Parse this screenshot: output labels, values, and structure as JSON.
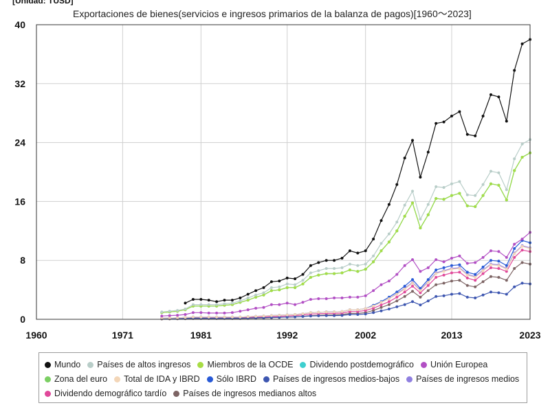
{
  "unit_label": "[Unidad: TUSD]",
  "chart_data": {
    "type": "line",
    "title": "Exportaciones de bienes(servicios e ingresos primarios de la balanza de pagos)[1960～2023]",
    "xlabel": "",
    "ylabel": "",
    "xlim": [
      1960,
      2023
    ],
    "ylim": [
      0,
      40
    ],
    "x_ticks": [
      1960,
      1971,
      1981,
      1992,
      2002,
      2013,
      2023
    ],
    "y_ticks": [
      0,
      8,
      16,
      24,
      32,
      40
    ],
    "grid": true,
    "legend_position": "bottom",
    "x": [
      1976,
      1977,
      1978,
      1979,
      1980,
      1981,
      1982,
      1983,
      1984,
      1985,
      1986,
      1987,
      1988,
      1989,
      1990,
      1991,
      1992,
      1993,
      1994,
      1995,
      1996,
      1997,
      1998,
      1999,
      2000,
      2001,
      2002,
      2003,
      2004,
      2005,
      2006,
      2007,
      2008,
      2009,
      2010,
      2011,
      2012,
      2013,
      2014,
      2015,
      2016,
      2017,
      2018,
      2019,
      2020,
      2021,
      2022,
      2023
    ],
    "series": [
      {
        "name": "Mundo",
        "color": "#111111",
        "values": [
          null,
          null,
          null,
          2.2,
          2.7,
          2.7,
          2.6,
          2.4,
          2.6,
          2.6,
          2.9,
          3.4,
          3.9,
          4.3,
          5.1,
          5.2,
          5.6,
          5.5,
          6.1,
          7.3,
          7.7,
          8.0,
          8.0,
          8.3,
          9.3,
          9.0,
          9.3,
          10.9,
          13.4,
          15.6,
          18.3,
          21.9,
          24.3,
          19.3,
          22.7,
          26.6,
          26.8,
          27.6,
          28.2,
          25.1,
          24.9,
          27.6,
          30.5,
          30.2,
          26.9,
          33.8,
          37.4,
          38.0
        ]
      },
      {
        "name": "Países de altos ingresos",
        "color": "#b8cdc8",
        "values": [
          1.0,
          1.1,
          1.2,
          1.4,
          2.0,
          2.0,
          2.0,
          2.0,
          2.1,
          2.2,
          2.5,
          2.9,
          3.3,
          3.6,
          4.3,
          4.4,
          4.8,
          4.7,
          5.3,
          6.3,
          6.6,
          6.9,
          6.9,
          7.0,
          7.5,
          7.3,
          7.5,
          8.6,
          10.3,
          11.6,
          13.2,
          15.5,
          17.4,
          13.6,
          15.6,
          18.0,
          17.9,
          18.4,
          18.7,
          16.9,
          16.8,
          18.3,
          20.1,
          19.9,
          17.6,
          21.8,
          23.8,
          24.4
        ]
      },
      {
        "name": "Miembros de la OCDE",
        "color": "#a7dc44",
        "values": [
          0.9,
          1.0,
          1.1,
          1.3,
          1.8,
          1.8,
          1.8,
          1.8,
          1.9,
          2.0,
          2.3,
          2.6,
          3.0,
          3.3,
          3.9,
          4.0,
          4.3,
          4.3,
          4.8,
          5.7,
          6.0,
          6.2,
          6.2,
          6.3,
          6.7,
          6.5,
          6.8,
          7.8,
          9.3,
          10.5,
          12.0,
          14.0,
          15.8,
          12.4,
          14.2,
          16.4,
          16.3,
          16.8,
          17.1,
          15.4,
          15.3,
          16.8,
          18.4,
          18.2,
          16.2,
          20.2,
          22.0,
          22.6
        ]
      },
      {
        "name": "Dividendo postdemográfico",
        "color": "#3ecfcf",
        "values": [
          0.9,
          1.0,
          1.1,
          1.3,
          1.8,
          1.8,
          1.8,
          1.8,
          1.9,
          2.0,
          2.3,
          2.6,
          3.0,
          3.3,
          3.9,
          4.0,
          4.3,
          4.3,
          4.8,
          5.7,
          6.0,
          6.2,
          6.2,
          6.3,
          6.7,
          6.5,
          6.8,
          7.8,
          9.3,
          10.5,
          12.0,
          14.0,
          15.8,
          12.4,
          14.2,
          16.4,
          16.3,
          16.8,
          17.1,
          15.4,
          15.3,
          16.8,
          18.4,
          18.2,
          16.2,
          20.2,
          22.0,
          22.6
        ]
      },
      {
        "name": "Unión Europea",
        "color": "#b24fc4",
        "values": [
          0.45,
          0.5,
          0.55,
          0.65,
          0.9,
          0.9,
          0.85,
          0.85,
          0.85,
          0.9,
          1.1,
          1.3,
          1.5,
          1.6,
          2.0,
          2.0,
          2.2,
          2.0,
          2.3,
          2.7,
          2.8,
          2.8,
          2.9,
          2.9,
          3.0,
          3.0,
          3.2,
          3.9,
          4.7,
          5.2,
          6.1,
          7.3,
          8.1,
          6.5,
          7.0,
          8.1,
          7.8,
          8.3,
          8.6,
          7.6,
          7.7,
          8.4,
          9.3,
          9.2,
          8.4,
          10.2,
          10.9,
          11.8
        ]
      },
      {
        "name": "Zona del euro",
        "color": "#7bcf63",
        "values": [
          0.9,
          1.0,
          1.1,
          1.3,
          1.8,
          1.8,
          1.8,
          1.8,
          1.9,
          2.0,
          2.3,
          2.6,
          3.0,
          3.3,
          3.9,
          4.0,
          4.3,
          4.3,
          4.8,
          5.7,
          6.0,
          6.2,
          6.2,
          6.3,
          6.7,
          6.5,
          6.8,
          7.8,
          9.3,
          10.5,
          12.0,
          14.0,
          15.8,
          12.4,
          14.2,
          16.4,
          16.3,
          16.8,
          17.1,
          15.4,
          15.3,
          16.8,
          18.4,
          18.2,
          16.2,
          20.2,
          22.0,
          22.6
        ]
      },
      {
        "name": "Total de IDA y IBRD",
        "color": "#f3d6b8",
        "values": [
          0.15,
          0.17,
          0.2,
          0.24,
          0.3,
          0.3,
          0.3,
          0.3,
          0.3,
          0.3,
          0.3,
          0.35,
          0.4,
          0.45,
          0.5,
          0.55,
          0.6,
          0.65,
          0.75,
          0.9,
          0.95,
          1.0,
          1.0,
          1.05,
          1.3,
          1.3,
          1.45,
          1.8,
          2.3,
          2.8,
          3.4,
          4.1,
          4.9,
          3.9,
          5.0,
          6.2,
          6.5,
          6.8,
          6.9,
          6.0,
          5.7,
          6.6,
          7.4,
          7.3,
          6.8,
          8.9,
          9.9,
          9.6
        ]
      },
      {
        "name": "Sólo IBRD",
        "color": "#2759d6",
        "values": [
          0.15,
          0.17,
          0.2,
          0.24,
          0.3,
          0.3,
          0.3,
          0.3,
          0.3,
          0.3,
          0.3,
          0.35,
          0.4,
          0.45,
          0.5,
          0.55,
          0.6,
          0.65,
          0.75,
          0.9,
          0.95,
          1.0,
          1.0,
          1.05,
          1.3,
          1.3,
          1.45,
          1.9,
          2.4,
          3.0,
          3.7,
          4.5,
          5.4,
          4.2,
          5.4,
          6.7,
          7.0,
          7.3,
          7.4,
          6.4,
          6.1,
          7.1,
          8.0,
          7.9,
          7.3,
          9.6,
          10.7,
          10.4
        ]
      },
      {
        "name": "Países de ingresos medios-bajos",
        "color": "#3d56b0",
        "values": [
          0.1,
          0.1,
          0.1,
          0.12,
          0.15,
          0.15,
          0.14,
          0.14,
          0.14,
          0.15,
          0.15,
          0.17,
          0.2,
          0.22,
          0.25,
          0.27,
          0.3,
          0.33,
          0.38,
          0.45,
          0.48,
          0.5,
          0.5,
          0.52,
          0.65,
          0.65,
          0.72,
          0.9,
          1.15,
          1.4,
          1.7,
          2.0,
          2.4,
          1.95,
          2.5,
          3.1,
          3.2,
          3.4,
          3.5,
          3.0,
          2.9,
          3.3,
          3.7,
          3.6,
          3.4,
          4.4,
          4.9,
          4.8
        ]
      },
      {
        "name": "Países de ingresos medios",
        "color": "#8f7fe0",
        "values": [
          0.15,
          0.17,
          0.2,
          0.24,
          0.3,
          0.3,
          0.3,
          0.3,
          0.3,
          0.3,
          0.3,
          0.35,
          0.4,
          0.45,
          0.5,
          0.55,
          0.6,
          0.65,
          0.75,
          0.9,
          0.95,
          1.0,
          1.0,
          1.05,
          1.3,
          1.3,
          1.45,
          1.8,
          2.3,
          2.8,
          3.5,
          4.2,
          5.0,
          4.0,
          5.1,
          6.3,
          6.6,
          6.9,
          7.0,
          6.1,
          5.8,
          6.7,
          7.5,
          7.4,
          6.9,
          9.0,
          10.0,
          9.7
        ]
      },
      {
        "name": "Dividendo demográfico tardío",
        "color": "#e0489a",
        "values": [
          0.1,
          0.11,
          0.13,
          0.16,
          0.2,
          0.2,
          0.2,
          0.2,
          0.2,
          0.2,
          0.2,
          0.24,
          0.28,
          0.32,
          0.36,
          0.4,
          0.45,
          0.5,
          0.6,
          0.72,
          0.76,
          0.8,
          0.8,
          0.85,
          1.05,
          1.05,
          1.2,
          1.5,
          1.95,
          2.4,
          3.0,
          3.7,
          4.5,
          3.6,
          4.6,
          5.7,
          6.0,
          6.3,
          6.4,
          5.6,
          5.3,
          6.2,
          7.0,
          6.9,
          6.5,
          8.4,
          9.4,
          9.2
        ]
      },
      {
        "name": "Países de ingresos medianos altos",
        "color": "#7d6464",
        "values": [
          0.05,
          0.06,
          0.07,
          0.08,
          0.1,
          0.1,
          0.1,
          0.1,
          0.1,
          0.1,
          0.1,
          0.12,
          0.15,
          0.18,
          0.22,
          0.25,
          0.3,
          0.33,
          0.4,
          0.5,
          0.55,
          0.6,
          0.6,
          0.65,
          0.8,
          0.8,
          0.9,
          1.2,
          1.6,
          2.0,
          2.5,
          3.1,
          3.8,
          3.0,
          3.9,
          4.7,
          4.9,
          5.2,
          5.3,
          4.6,
          4.4,
          5.1,
          5.8,
          5.7,
          5.3,
          6.9,
          7.7,
          7.5
        ]
      }
    ]
  }
}
